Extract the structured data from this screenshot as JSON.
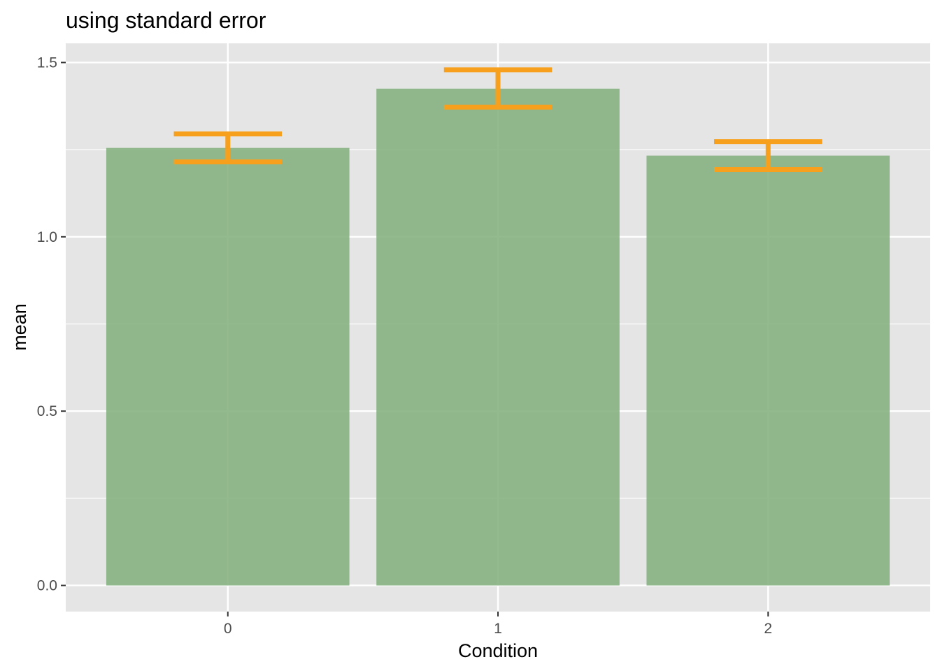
{
  "chart_data": {
    "type": "bar",
    "title": "using standard error",
    "xlabel": "Condition",
    "ylabel": "mean",
    "categories": [
      "0",
      "1",
      "2"
    ],
    "values": [
      1.255,
      1.425,
      1.233
    ],
    "error_low": [
      1.215,
      1.372,
      1.193
    ],
    "error_high": [
      1.295,
      1.479,
      1.273
    ],
    "ylim": [
      -0.075,
      1.555
    ],
    "yticks": [
      0.0,
      0.5,
      1.0,
      1.5
    ],
    "ytick_labels": [
      "0.0",
      "0.5",
      "1.0",
      "1.5"
    ],
    "grid": true,
    "legend": "none",
    "colors": {
      "bar": "#84b07e",
      "errorbar": "#f7a01e",
      "panel": "#e5e5e5",
      "grid": "#ffffff"
    }
  }
}
